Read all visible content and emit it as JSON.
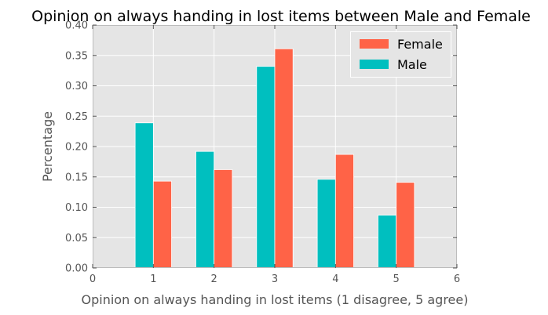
{
  "chart_data": {
    "type": "bar",
    "title": "Opinion on always handing in lost items between Male and Female",
    "xlabel": "Opinion on always handing in lost items (1 disagree, 5 agree)",
    "ylabel": "Percentage",
    "x": [
      1,
      2,
      3,
      4,
      5
    ],
    "xlim": [
      0,
      6
    ],
    "ylim": [
      0,
      0.4
    ],
    "xticks": [
      "0",
      "1",
      "2",
      "3",
      "4",
      "5",
      "6"
    ],
    "yticks": [
      "0.00",
      "0.05",
      "0.10",
      "0.15",
      "0.20",
      "0.25",
      "0.30",
      "0.35",
      "0.40"
    ],
    "grid": true,
    "legend_position": "top-right",
    "series": [
      {
        "name": "Female",
        "color": "#ff6347",
        "values": [
          0.143,
          0.162,
          0.361,
          0.187,
          0.141
        ]
      },
      {
        "name": "Male",
        "color": "#00bfbf",
        "values": [
          0.239,
          0.192,
          0.332,
          0.146,
          0.087
        ]
      }
    ]
  }
}
